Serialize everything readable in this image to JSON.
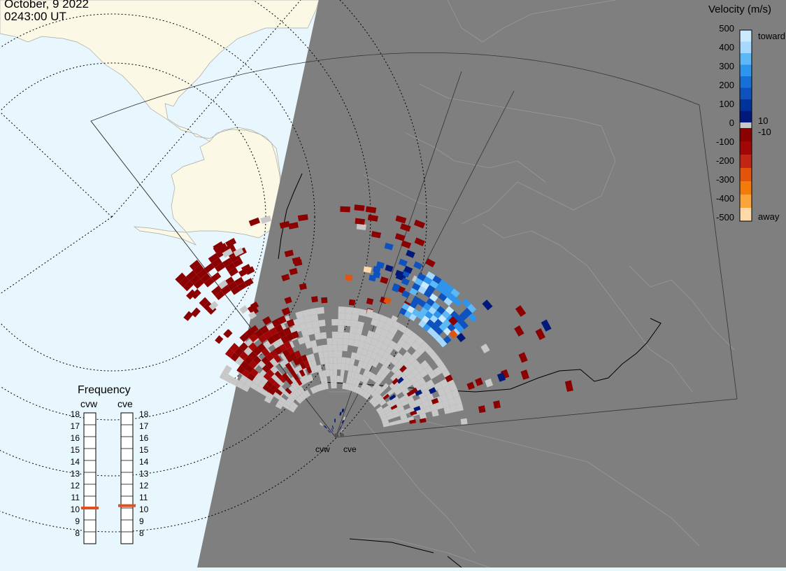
{
  "header": {
    "date": "October, 9 2022",
    "time": "0243:00 UT"
  },
  "colorbar": {
    "title": "Velocity (m/s)",
    "ticks": [
      "500",
      "400",
      "300",
      "200",
      "100",
      "0",
      "-100",
      "-200",
      "-300",
      "-400",
      "-500"
    ],
    "side_labels": {
      "toward": "toward",
      "pos_threshold": "10",
      "neg_threshold": "-10",
      "away": "away"
    },
    "colors": [
      "#c9eaff",
      "#a6d9ff",
      "#5cb9f6",
      "#2e95ee",
      "#1770d8",
      "#0d52bf",
      "#003399",
      "#00197a",
      "#8b0000",
      "#a10707",
      "#c22512",
      "#e2540c",
      "#f37b0c",
      "#fba43c",
      "#fed9aa"
    ]
  },
  "frequency_panel": {
    "title": "Frequency",
    "radars": [
      {
        "name": "cvw",
        "value_mhz": 10.5
      },
      {
        "name": "cve",
        "value_mhz": 10.7
      }
    ],
    "scale": [
      "18",
      "17",
      "16",
      "15",
      "14",
      "13",
      "12",
      "11",
      "10",
      "9",
      "8"
    ]
  },
  "stations": [
    {
      "name": "cvw"
    },
    {
      "name": "cve"
    }
  ],
  "legend_colors": {
    "ocean_day": "#e8f6fd",
    "land_day": "#fbf8e6",
    "night": "#7f7f7f",
    "ground_scatter": "#c8c8c8",
    "marker": "#e0501e"
  }
}
